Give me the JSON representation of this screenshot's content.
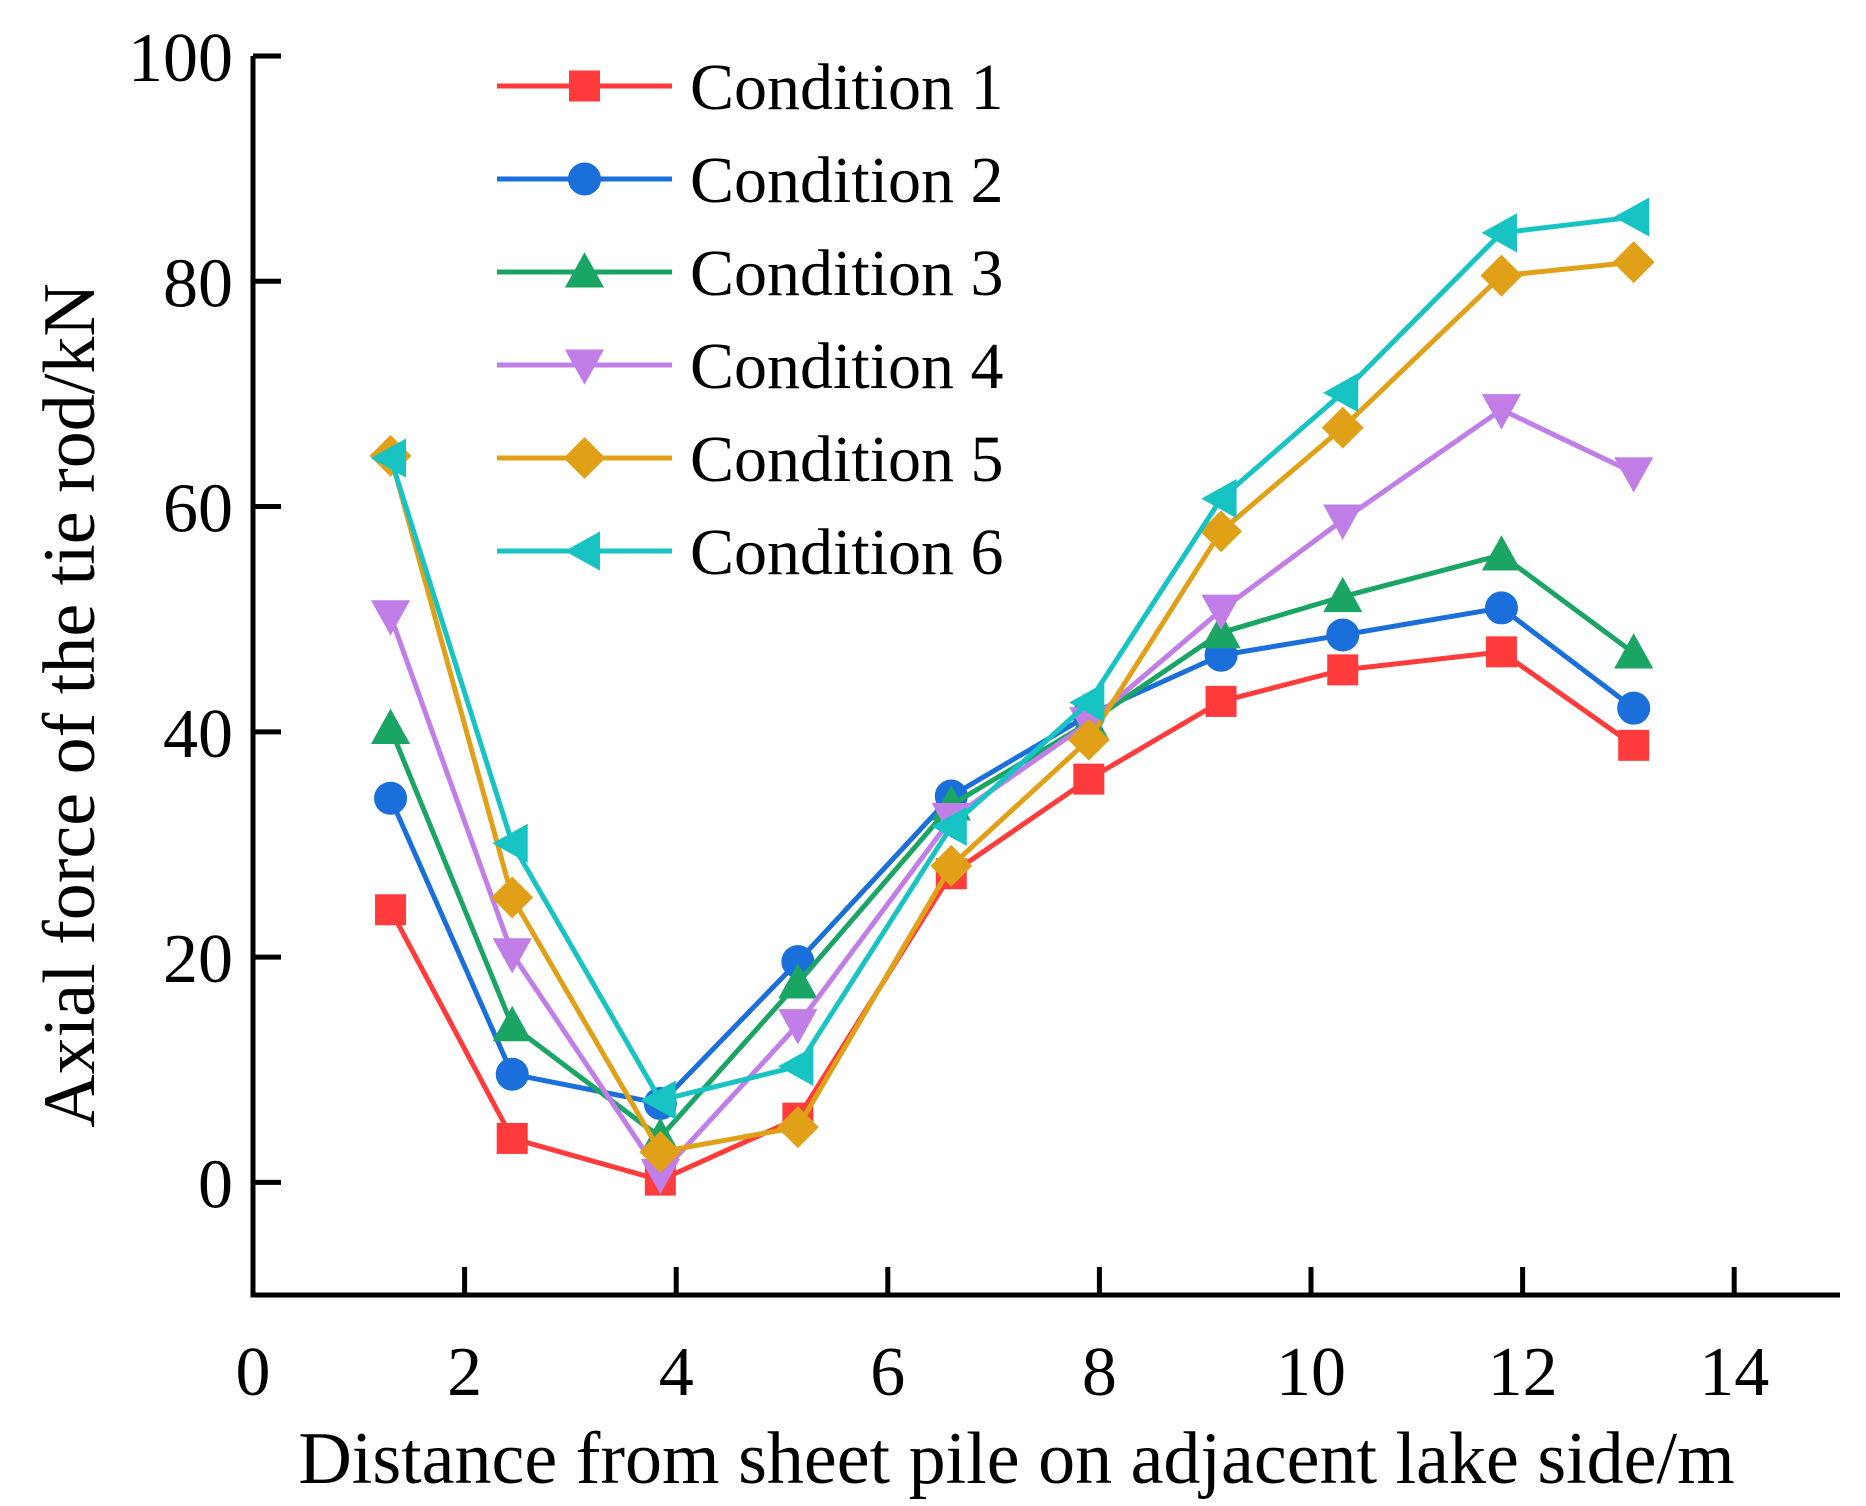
{
  "chart_data": {
    "type": "line",
    "title": "",
    "xlabel": "Distance from sheet pile on adjacent lake side/m",
    "ylabel": "Axial force of the tie rod/kN",
    "xlim": [
      0,
      15
    ],
    "ylim": [
      -10,
      100
    ],
    "xticks": [
      0,
      2,
      4,
      6,
      8,
      10,
      12,
      14
    ],
    "yticks": [
      0,
      20,
      40,
      60,
      80,
      100
    ],
    "grid": false,
    "legend_position": "top-left",
    "x": [
      1.3,
      2.45,
      3.85,
      5.15,
      6.6,
      7.9,
      9.15,
      10.3,
      11.8,
      13.05
    ],
    "series": [
      {
        "name": "Condition 1",
        "color": "#ff3b3b",
        "marker": "square",
        "values": [
          24.2,
          3.9,
          0.2,
          5.7,
          27.4,
          35.8,
          42.7,
          45.5,
          47.1,
          38.8
        ]
      },
      {
        "name": "Condition 2",
        "color": "#1a6fdb",
        "marker": "circle",
        "values": [
          34.1,
          9.6,
          7.0,
          19.6,
          34.3,
          41.5,
          46.8,
          48.6,
          51.0,
          42.1
        ]
      },
      {
        "name": "Condition 3",
        "color": "#1aa565",
        "marker": "triangle-up",
        "values": [
          40.3,
          13.9,
          4.0,
          17.7,
          33.5,
          40.8,
          48.8,
          52.0,
          55.7,
          47.0
        ]
      },
      {
        "name": "Condition 4",
        "color": "#c07ee6",
        "marker": "triangle-down",
        "values": [
          50.3,
          20.3,
          0.7,
          14.0,
          32.3,
          40.8,
          50.8,
          58.8,
          68.6,
          63.0
        ]
      },
      {
        "name": "Condition 5",
        "color": "#e0a018",
        "marker": "diamond",
        "values": [
          64.5,
          25.3,
          2.7,
          4.9,
          28.1,
          39.3,
          57.8,
          67.0,
          80.5,
          81.7
        ]
      },
      {
        "name": "Condition 6",
        "color": "#17c3c3",
        "marker": "triangle-left",
        "values": [
          64.3,
          30.1,
          7.3,
          10.3,
          31.6,
          42.6,
          60.7,
          70.1,
          84.3,
          85.7
        ]
      }
    ]
  }
}
